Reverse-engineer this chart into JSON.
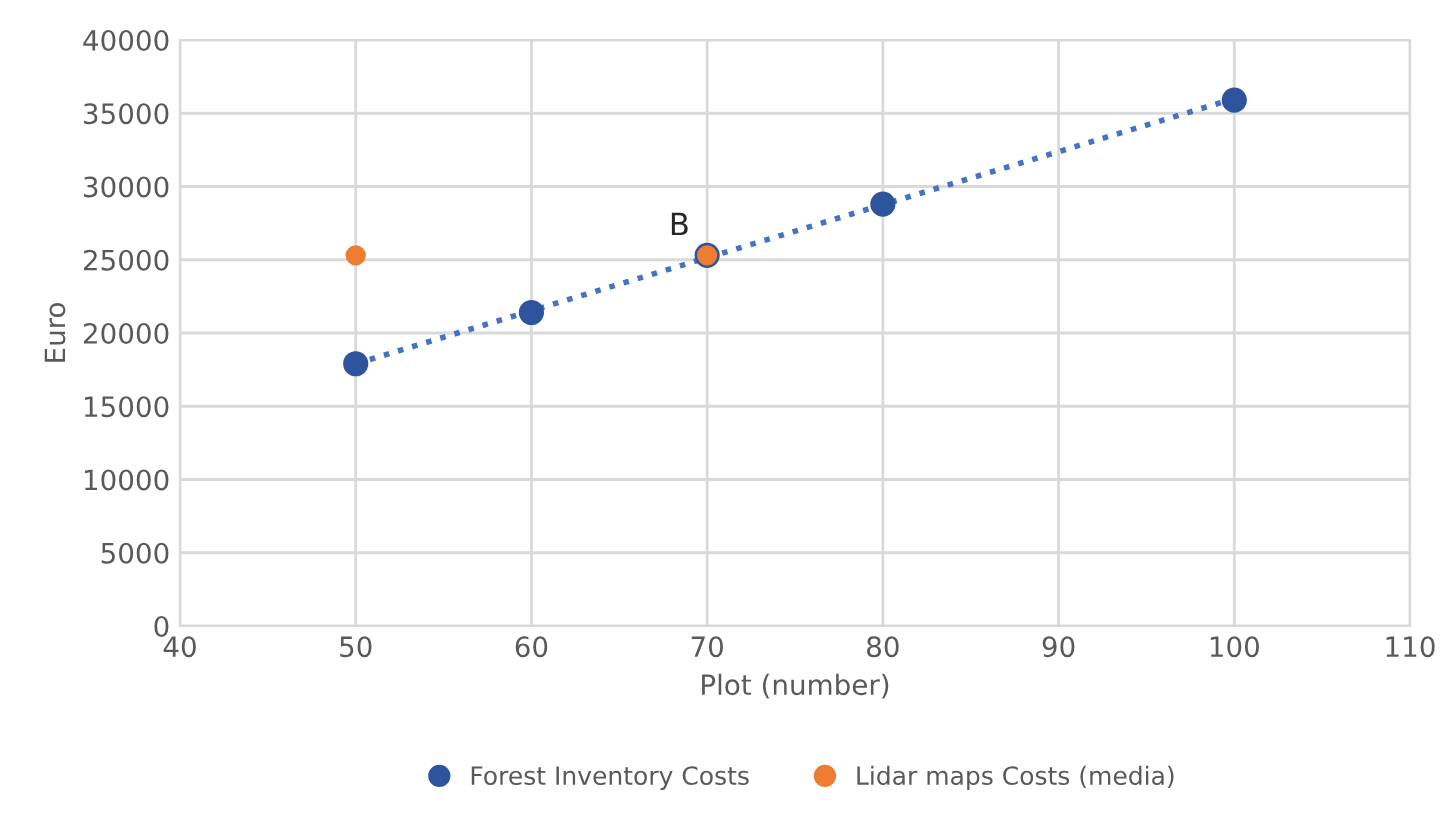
{
  "chart_data": {
    "type": "scatter",
    "xlabel": "Plot (number)",
    "ylabel": "Euro",
    "xlim": [
      40,
      110
    ],
    "xticks": [
      40,
      50,
      60,
      70,
      80,
      90,
      100,
      110
    ],
    "ylim": [
      0,
      40000
    ],
    "yticks": [
      0,
      5000,
      10000,
      15000,
      20000,
      25000,
      30000,
      35000,
      40000
    ],
    "grid": true,
    "legend": "bottom",
    "series": [
      {
        "type": "line",
        "line_style": "dotted",
        "color": "#4472c4",
        "x": [
          50,
          100
        ],
        "values": [
          17900,
          36000
        ]
      },
      {
        "name": "Forest Inventory Costs",
        "marker": "circle",
        "color": "#2f549e",
        "x": [
          50,
          60,
          70,
          80,
          100
        ],
        "values": [
          17900,
          21400,
          25300,
          28800,
          35900
        ]
      },
      {
        "name": "Lidar maps Costs (media)",
        "marker": "circle",
        "color": "#ed7d31",
        "x": [
          50,
          70
        ],
        "values": [
          25300,
          25300
        ]
      }
    ],
    "annotations": [
      {
        "text": "B",
        "x": 70,
        "y": 25300
      }
    ]
  }
}
